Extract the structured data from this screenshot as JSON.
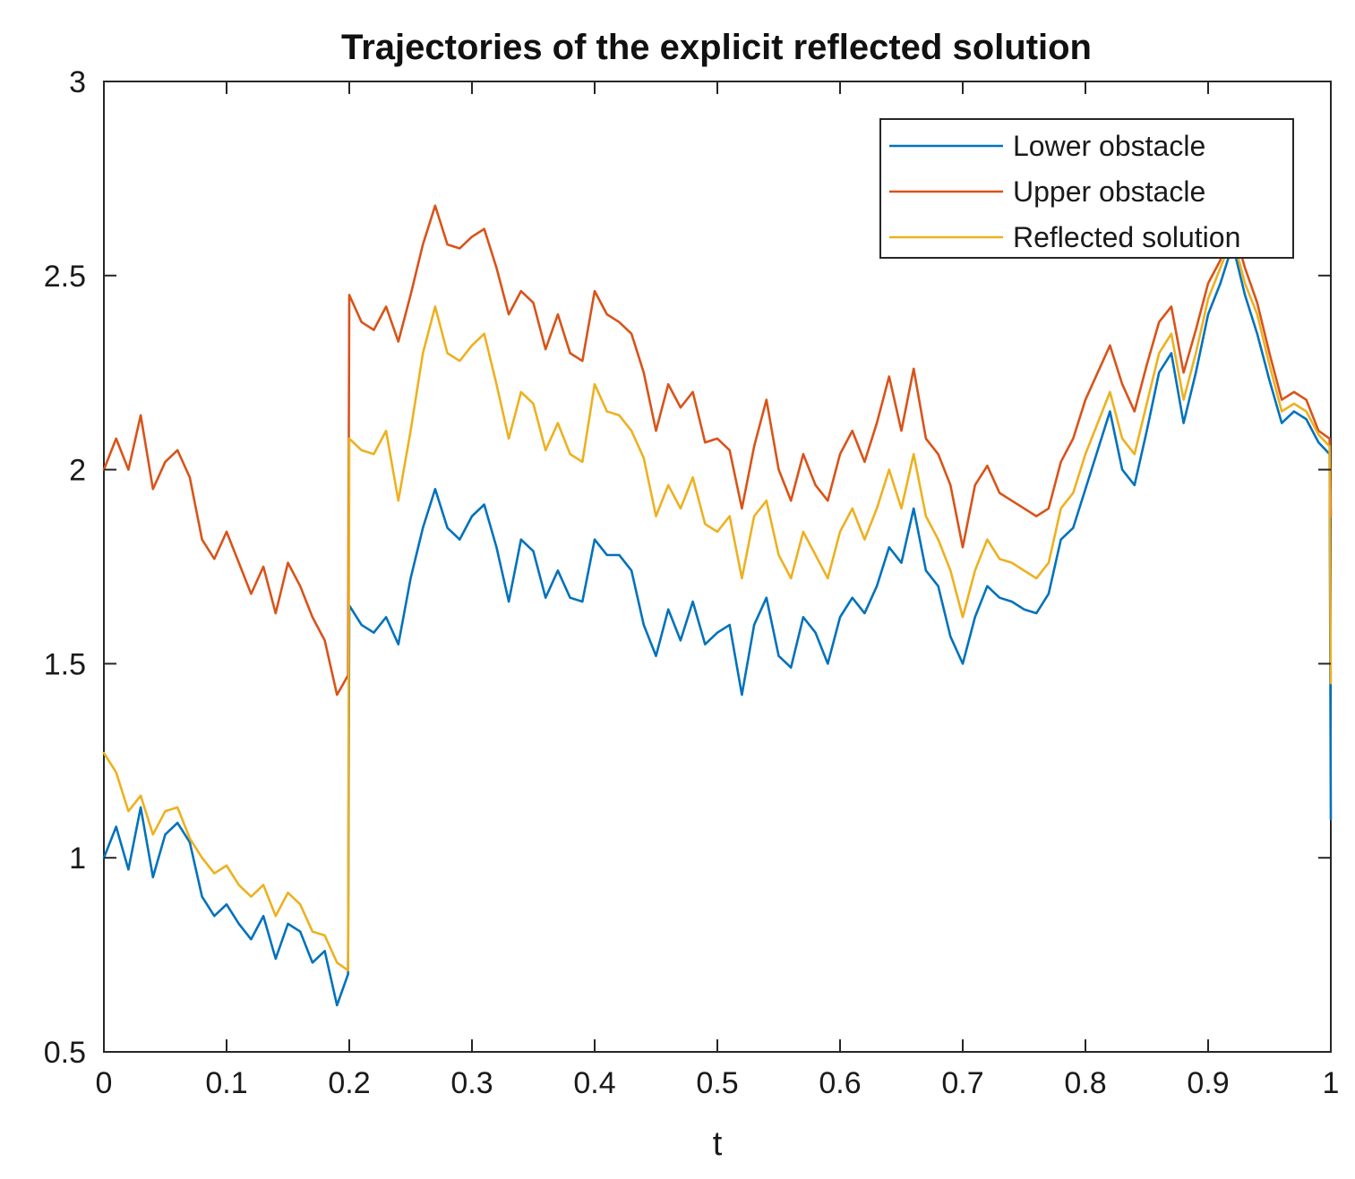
{
  "chart_data": {
    "type": "line",
    "title": "Trajectories of the explicit reflected solution",
    "xlabel": "t",
    "ylabel": "",
    "xlim": [
      0,
      1
    ],
    "ylim": [
      0.5,
      3
    ],
    "grid": false,
    "legend_position": "top-right",
    "x_ticks": [
      0,
      0.1,
      0.2,
      0.3,
      0.4,
      0.5,
      0.6,
      0.7,
      0.8,
      0.9,
      1
    ],
    "x_tick_labels": [
      "0",
      "0.1",
      "0.2",
      "0.3",
      "0.4",
      "0.5",
      "0.6",
      "0.7",
      "0.8",
      "0.9",
      "1"
    ],
    "y_ticks": [
      0.5,
      1,
      1.5,
      2,
      2.5,
      3
    ],
    "y_tick_labels": [
      "0.5",
      "1",
      "1.5",
      "2",
      "2.5",
      "3"
    ],
    "x": [
      0,
      0.01,
      0.02,
      0.03,
      0.04,
      0.05,
      0.06,
      0.07,
      0.08,
      0.09,
      0.1,
      0.11,
      0.12,
      0.13,
      0.14,
      0.15,
      0.16,
      0.17,
      0.18,
      0.19,
      0.199,
      0.2,
      0.21,
      0.22,
      0.23,
      0.24,
      0.25,
      0.26,
      0.27,
      0.28,
      0.29,
      0.3,
      0.31,
      0.32,
      0.33,
      0.34,
      0.35,
      0.36,
      0.37,
      0.38,
      0.39,
      0.4,
      0.41,
      0.42,
      0.43,
      0.44,
      0.45,
      0.46,
      0.47,
      0.48,
      0.49,
      0.5,
      0.51,
      0.52,
      0.53,
      0.54,
      0.55,
      0.56,
      0.57,
      0.58,
      0.59,
      0.6,
      0.61,
      0.62,
      0.63,
      0.64,
      0.65,
      0.66,
      0.67,
      0.68,
      0.69,
      0.7,
      0.71,
      0.72,
      0.73,
      0.74,
      0.75,
      0.76,
      0.77,
      0.78,
      0.79,
      0.8,
      0.81,
      0.82,
      0.83,
      0.84,
      0.85,
      0.86,
      0.87,
      0.88,
      0.89,
      0.9,
      0.91,
      0.92,
      0.93,
      0.94,
      0.95,
      0.96,
      0.97,
      0.98,
      0.99,
      0.999,
      1
    ],
    "series": [
      {
        "name": "Lower obstacle",
        "color": "#0072BD",
        "values": [
          1.0,
          1.08,
          0.97,
          1.13,
          0.95,
          1.06,
          1.09,
          1.04,
          0.9,
          0.85,
          0.88,
          0.83,
          0.79,
          0.85,
          0.74,
          0.83,
          0.81,
          0.73,
          0.76,
          0.62,
          0.7,
          1.65,
          1.6,
          1.58,
          1.62,
          1.55,
          1.72,
          1.85,
          1.95,
          1.85,
          1.82,
          1.88,
          1.91,
          1.8,
          1.66,
          1.82,
          1.79,
          1.67,
          1.74,
          1.67,
          1.66,
          1.82,
          1.78,
          1.78,
          1.74,
          1.6,
          1.52,
          1.64,
          1.56,
          1.66,
          1.55,
          1.58,
          1.6,
          1.42,
          1.6,
          1.67,
          1.52,
          1.49,
          1.62,
          1.58,
          1.5,
          1.62,
          1.67,
          1.63,
          1.7,
          1.8,
          1.76,
          1.9,
          1.74,
          1.7,
          1.57,
          1.5,
          1.62,
          1.7,
          1.67,
          1.66,
          1.64,
          1.63,
          1.68,
          1.82,
          1.85,
          1.95,
          2.05,
          2.15,
          2.0,
          1.96,
          2.1,
          2.25,
          2.3,
          2.12,
          2.25,
          2.4,
          2.48,
          2.58,
          2.45,
          2.35,
          2.23,
          2.12,
          2.15,
          2.13,
          2.07,
          2.04,
          1.1
        ]
      },
      {
        "name": "Upper obstacle",
        "color": "#D95319",
        "values": [
          2.0,
          2.08,
          2.0,
          2.14,
          1.95,
          2.02,
          2.05,
          1.98,
          1.82,
          1.77,
          1.84,
          1.76,
          1.68,
          1.75,
          1.63,
          1.76,
          1.7,
          1.62,
          1.56,
          1.42,
          1.47,
          2.45,
          2.38,
          2.36,
          2.42,
          2.33,
          2.45,
          2.58,
          2.68,
          2.58,
          2.57,
          2.6,
          2.62,
          2.52,
          2.4,
          2.46,
          2.43,
          2.31,
          2.4,
          2.3,
          2.28,
          2.46,
          2.4,
          2.38,
          2.35,
          2.25,
          2.1,
          2.22,
          2.16,
          2.2,
          2.07,
          2.08,
          2.05,
          1.9,
          2.06,
          2.18,
          2.0,
          1.92,
          2.04,
          1.96,
          1.92,
          2.04,
          2.1,
          2.02,
          2.12,
          2.24,
          2.1,
          2.26,
          2.08,
          2.04,
          1.96,
          1.8,
          1.96,
          2.01,
          1.94,
          1.92,
          1.9,
          1.88,
          1.9,
          2.02,
          2.08,
          2.18,
          2.25,
          2.32,
          2.22,
          2.15,
          2.27,
          2.38,
          2.42,
          2.25,
          2.36,
          2.48,
          2.54,
          2.63,
          2.52,
          2.43,
          2.3,
          2.18,
          2.2,
          2.18,
          2.1,
          2.08,
          1.88
        ]
      },
      {
        "name": "Reflected solution",
        "color": "#EDB120",
        "values": [
          1.27,
          1.22,
          1.12,
          1.16,
          1.06,
          1.12,
          1.13,
          1.05,
          1.0,
          0.96,
          0.98,
          0.93,
          0.9,
          0.93,
          0.85,
          0.91,
          0.88,
          0.81,
          0.8,
          0.73,
          0.71,
          2.08,
          2.05,
          2.04,
          2.1,
          1.92,
          2.1,
          2.3,
          2.42,
          2.3,
          2.28,
          2.32,
          2.35,
          2.22,
          2.08,
          2.2,
          2.17,
          2.05,
          2.12,
          2.04,
          2.02,
          2.22,
          2.15,
          2.14,
          2.1,
          2.03,
          1.88,
          1.96,
          1.9,
          1.98,
          1.86,
          1.84,
          1.88,
          1.72,
          1.88,
          1.92,
          1.78,
          1.72,
          1.84,
          1.78,
          1.72,
          1.84,
          1.9,
          1.82,
          1.9,
          2.0,
          1.9,
          2.04,
          1.88,
          1.82,
          1.74,
          1.62,
          1.74,
          1.82,
          1.77,
          1.76,
          1.74,
          1.72,
          1.76,
          1.9,
          1.94,
          2.04,
          2.12,
          2.2,
          2.08,
          2.04,
          2.17,
          2.3,
          2.35,
          2.18,
          2.3,
          2.44,
          2.52,
          2.6,
          2.48,
          2.4,
          2.27,
          2.15,
          2.17,
          2.15,
          2.09,
          2.06,
          1.45
        ]
      }
    ]
  }
}
